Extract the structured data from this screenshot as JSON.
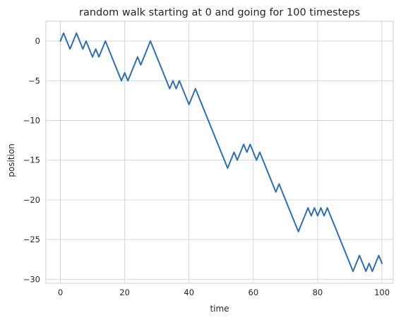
{
  "colors": {
    "series": "#2f6fad",
    "grid": "#d5d5d5",
    "text": "#262626",
    "background": "#ffffff"
  },
  "chart_data": {
    "type": "line",
    "title": "random walk starting at 0 and going for 100 timesteps",
    "xlabel": "time",
    "ylabel": "position",
    "xlim": [
      -4.5,
      103.5
    ],
    "ylim": [
      -30.5,
      2.5
    ],
    "x_ticks": [
      0,
      20,
      40,
      60,
      80,
      100
    ],
    "x_tick_labels": [
      "0",
      "20",
      "40",
      "60",
      "80",
      "100"
    ],
    "y_ticks": [
      0,
      -5,
      -10,
      -15,
      -20,
      -25,
      -30
    ],
    "y_tick_labels": [
      "0",
      "−5",
      "−10",
      "−15",
      "−20",
      "−25",
      "−30"
    ],
    "grid": true,
    "series": [
      {
        "values": [
          0,
          1,
          0,
          -1,
          0,
          1,
          0,
          -1,
          0,
          -1,
          -2,
          -1,
          -2,
          -1,
          0,
          -1,
          -2,
          -3,
          -4,
          -5,
          -4,
          -5,
          -4,
          -3,
          -2,
          -3,
          -2,
          -1,
          0,
          -1,
          -2,
          -3,
          -4,
          -5,
          -6,
          -5,
          -6,
          -5,
          -6,
          -7,
          -8,
          -7,
          -6,
          -7,
          -8,
          -9,
          -10,
          -11,
          -12,
          -13,
          -14,
          -15,
          -16,
          -15,
          -14,
          -15,
          -14,
          -13,
          -14,
          -13,
          -14,
          -15,
          -14,
          -15,
          -16,
          -17,
          -18,
          -19,
          -18,
          -19,
          -20,
          -21,
          -22,
          -23,
          -24,
          -23,
          -22,
          -21,
          -22,
          -21,
          -22,
          -21,
          -22,
          -21,
          -22,
          -23,
          -24,
          -25,
          -26,
          -27,
          -28,
          -29,
          -28,
          -27,
          -28,
          -29,
          -28,
          -29,
          -28,
          -27,
          -28
        ]
      }
    ]
  }
}
